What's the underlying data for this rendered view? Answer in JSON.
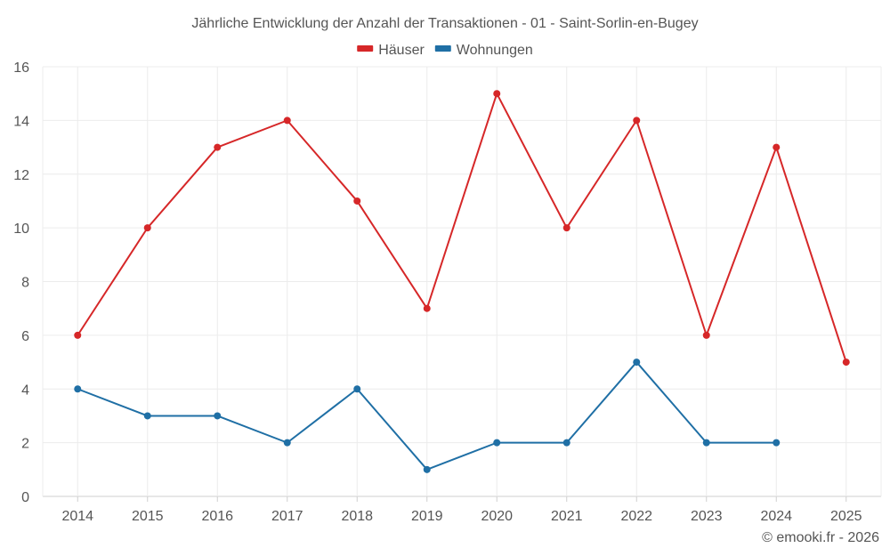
{
  "chart_data": {
    "type": "line",
    "title": "Jährliche Entwicklung der Anzahl der Transaktionen - 01 - Saint-Sorlin-en-Bugey",
    "categories": [
      "2014",
      "2015",
      "2016",
      "2017",
      "2018",
      "2019",
      "2020",
      "2021",
      "2022",
      "2023",
      "2024",
      "2025"
    ],
    "ylim": [
      0,
      16
    ],
    "yticks": [
      0,
      2,
      4,
      6,
      8,
      10,
      12,
      14,
      16
    ],
    "grid": true,
    "legend_position": "top-center",
    "series": [
      {
        "name": "Häuser",
        "color": "#d62728",
        "values": [
          6,
          10,
          13,
          14,
          11,
          7,
          15,
          10,
          14,
          6,
          13,
          5
        ]
      },
      {
        "name": "Wohnungen",
        "color": "#1f6fa5",
        "values": [
          4,
          3,
          3,
          2,
          4,
          1,
          2,
          2,
          5,
          2,
          2,
          null
        ]
      }
    ]
  },
  "credit": "© emooki.fr - 2026"
}
